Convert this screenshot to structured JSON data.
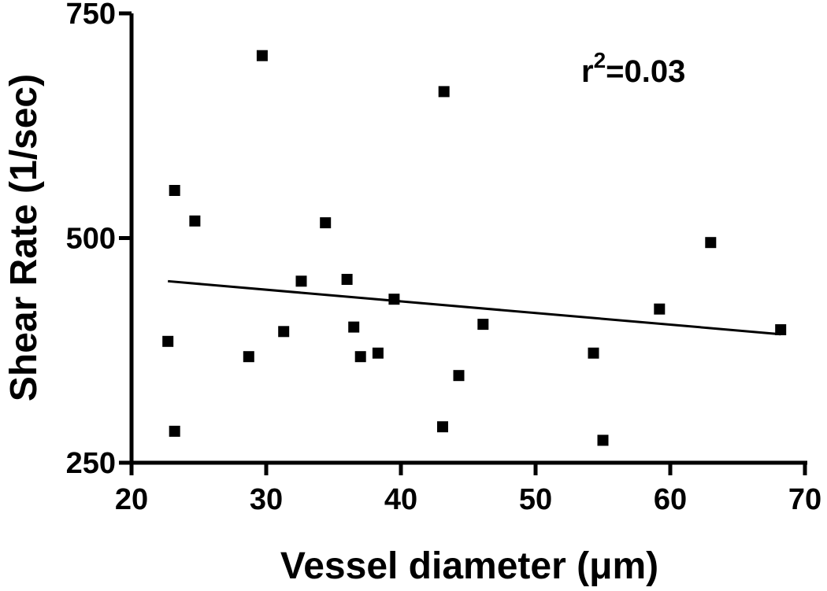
{
  "chart_data": {
    "type": "scatter",
    "xlabel": "Vessel diameter (μm)",
    "ylabel": "Shear Rate (1/sec)",
    "xlim": [
      20,
      70
    ],
    "ylim": [
      250,
      750
    ],
    "x_ticks": [
      "20",
      "30",
      "40",
      "50",
      "60",
      "70"
    ],
    "y_ticks": [
      "250",
      "500",
      "750"
    ],
    "annotation": {
      "base": "r",
      "sup": "2",
      "rest": "=0.03"
    },
    "points": [
      {
        "x": 22.7,
        "y": 385
      },
      {
        "x": 23.2,
        "y": 553
      },
      {
        "x": 23.2,
        "y": 285
      },
      {
        "x": 24.7,
        "y": 519
      },
      {
        "x": 28.7,
        "y": 368
      },
      {
        "x": 29.7,
        "y": 703
      },
      {
        "x": 31.3,
        "y": 396
      },
      {
        "x": 32.6,
        "y": 452
      },
      {
        "x": 34.4,
        "y": 517
      },
      {
        "x": 36.0,
        "y": 454
      },
      {
        "x": 36.5,
        "y": 401
      },
      {
        "x": 37.0,
        "y": 368
      },
      {
        "x": 38.3,
        "y": 372
      },
      {
        "x": 39.5,
        "y": 432
      },
      {
        "x": 43.1,
        "y": 290
      },
      {
        "x": 43.2,
        "y": 663
      },
      {
        "x": 44.3,
        "y": 347
      },
      {
        "x": 46.1,
        "y": 404
      },
      {
        "x": 54.3,
        "y": 372
      },
      {
        "x": 55.0,
        "y": 275
      },
      {
        "x": 59.2,
        "y": 421
      },
      {
        "x": 63.0,
        "y": 495
      },
      {
        "x": 68.2,
        "y": 398
      }
    ],
    "fit_line": {
      "x": [
        22.7,
        68.2
      ],
      "y": [
        452,
        393
      ]
    },
    "grid": false,
    "legend": "none",
    "marker": "square",
    "color": "#000000"
  }
}
